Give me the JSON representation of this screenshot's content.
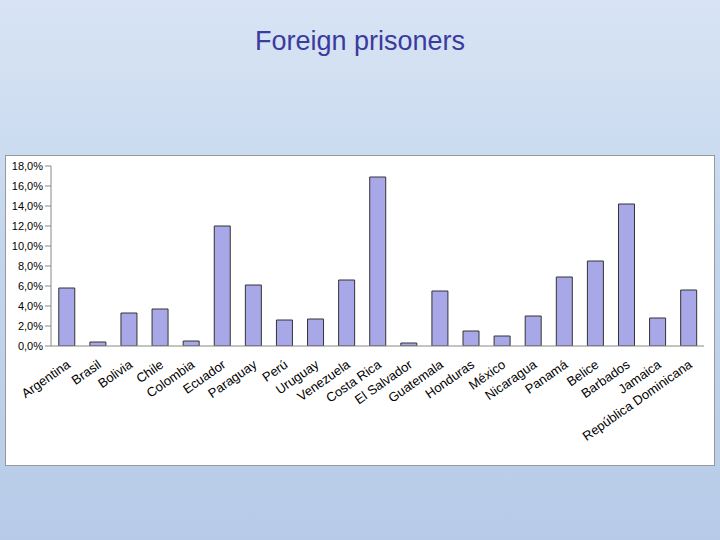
{
  "chart_data": {
    "type": "bar",
    "title": "Foreign prisoners",
    "categories": [
      "Argentina",
      "Brasil",
      "Bolivia",
      "Chile",
      "Colombia",
      "Ecuador",
      "Paraguay",
      "Perú",
      "Uruguay",
      "Venezuela",
      "Costa Rica",
      "El Salvador",
      "Guatemala",
      "Honduras",
      "México",
      "Nicaragua",
      "Panamá",
      "Belice",
      "Barbados",
      "Jamaica",
      "República Dominicana"
    ],
    "values": [
      5.8,
      0.4,
      3.3,
      3.7,
      0.5,
      12.0,
      6.1,
      2.6,
      2.7,
      6.6,
      16.9,
      0.3,
      5.5,
      1.5,
      1.0,
      3.0,
      6.9,
      8.5,
      14.2,
      2.8,
      5.6
    ],
    "color": "#a8a8e8",
    "ylim": [
      0,
      18
    ],
    "yticks": [
      {
        "value": 0,
        "label": "0,0%"
      },
      {
        "value": 2,
        "label": "2,0%"
      },
      {
        "value": 4,
        "label": "4,0%"
      },
      {
        "value": 6,
        "label": "6,0%"
      },
      {
        "value": 8,
        "label": "8,0%"
      },
      {
        "value": 10,
        "label": "10,0%"
      },
      {
        "value": 12,
        "label": "12,0%"
      },
      {
        "value": 14,
        "label": "14,0%"
      },
      {
        "value": 16,
        "label": "16,0%"
      },
      {
        "value": 18,
        "label": "18,0%"
      }
    ],
    "grid": false
  }
}
